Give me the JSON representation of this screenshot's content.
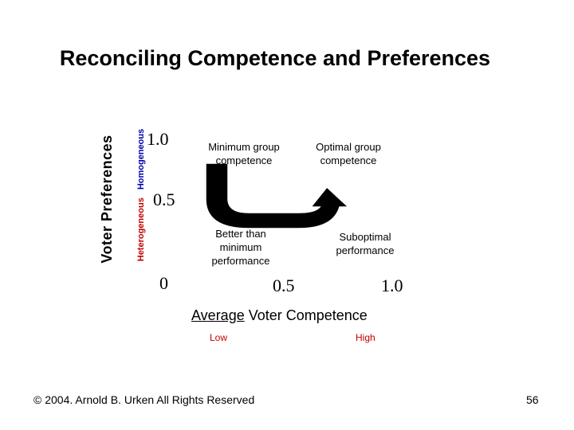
{
  "slide": {
    "title": "Reconciling Competence and Preferences",
    "footer": "© 2004. Arnold B. Urken All Rights Reserved",
    "page_number": "56"
  },
  "axes": {
    "y_title": "Voter Preferences",
    "y_low_label": "Heterogeneous",
    "y_high_label": "Homogeneous",
    "y_ticks": [
      "1.0",
      "0.5",
      "0"
    ],
    "x_ticks": [
      "0.5",
      "1.0"
    ],
    "x_title_underlined": "Average",
    "x_title_rest": " Voter Competence",
    "x_low_label": "Low",
    "x_high_label": "High"
  },
  "quadrants": {
    "top_left": "Minimum group competence",
    "top_right": "Optimal group competence",
    "bottom_left": "Better than minimum performance",
    "bottom_right": "Suboptimal performance"
  }
}
